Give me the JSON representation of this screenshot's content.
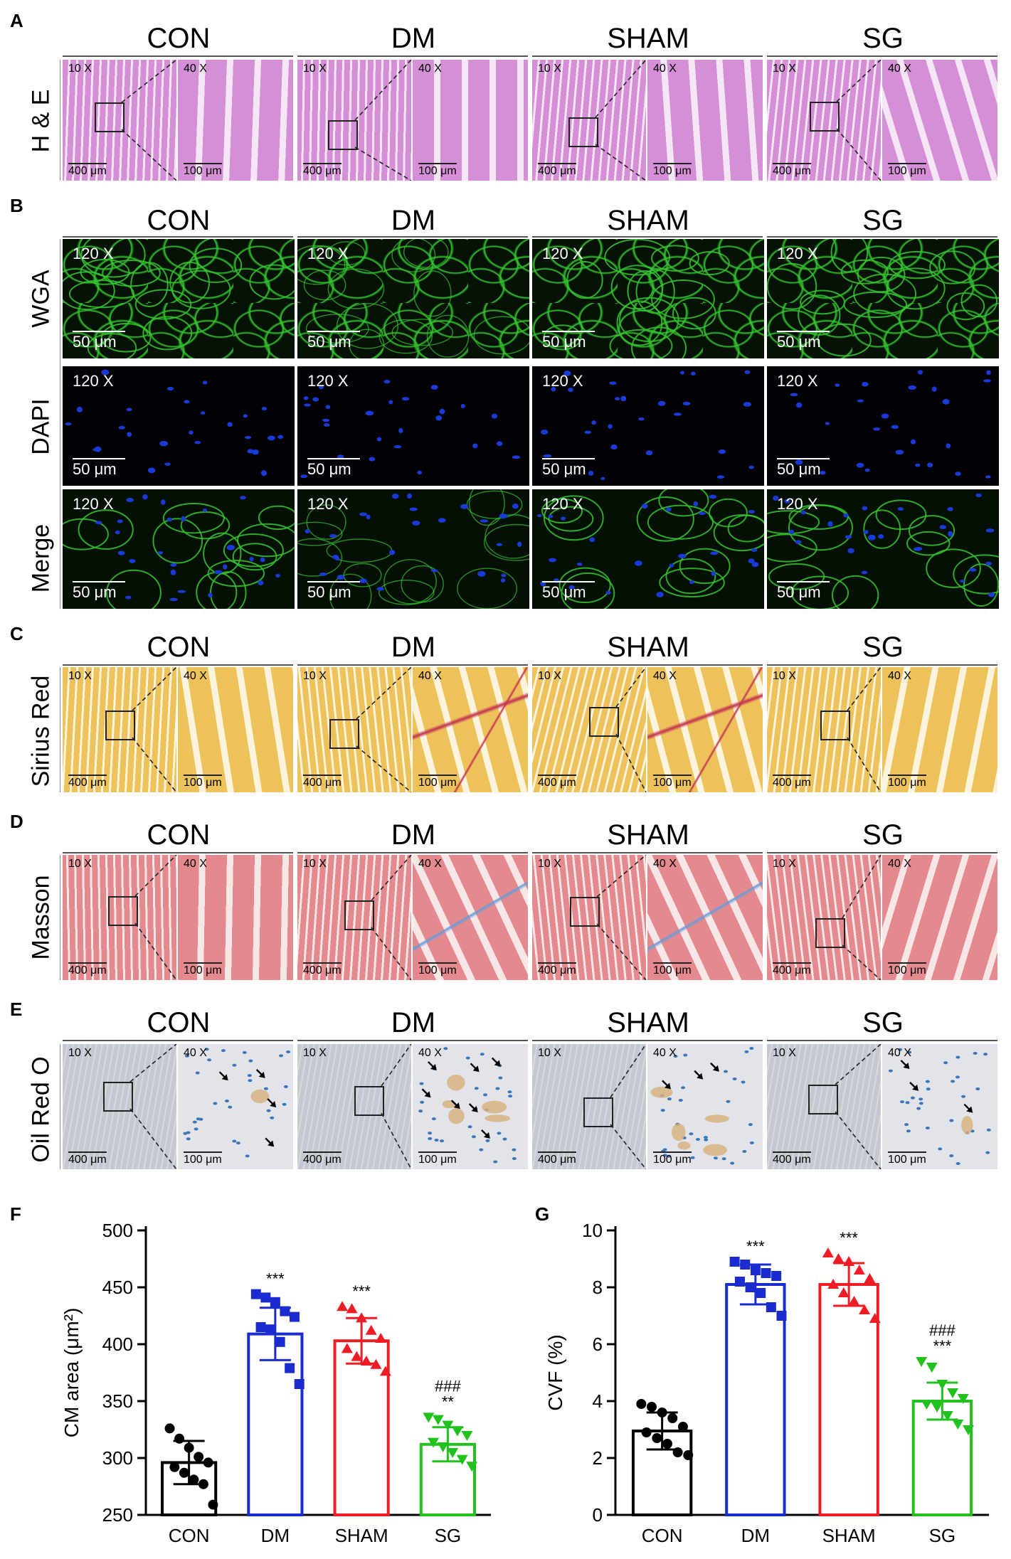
{
  "panel_letters": [
    "A",
    "B",
    "C",
    "D",
    "E",
    "F",
    "G"
  ],
  "groups": [
    "CON",
    "DM",
    "SHAM",
    "SG"
  ],
  "row_labels": {
    "he": "H & E",
    "wga": "WGA",
    "dapi": "DAPI",
    "merge": "Merge",
    "sirius": "Sirius Red",
    "masson": "Masson",
    "oil": "Oil Red O"
  },
  "mag": {
    "low": "10 X",
    "high": "40 X",
    "fluor": "120 X"
  },
  "scale": {
    "low": "400 μm",
    "high": "100 μm",
    "fluor": "50 μm"
  },
  "colors": {
    "he_bg": "#d48fd6",
    "he_gap": "#f4e6f4",
    "sirius_bg": "#edc25a",
    "sirius_gap": "#fbf3dc",
    "collagen": "#c23250",
    "masson_bg": "#e48a8e",
    "masson_gap": "#f7e6e6",
    "masson_blue": "#6a9bd6",
    "oil_bg": "#c9ccd3",
    "oil_nuc": "#3a76b8",
    "lipid": "#d8b07a",
    "wga": "#35c630",
    "dapi": "#1a3ad8",
    "con": "#000000",
    "dm": "#1a2bd0",
    "sham": "#ee1c24",
    "sg": "#22c21e"
  },
  "chart_data": [
    {
      "type": "bar",
      "title": "",
      "xlabel": "",
      "ylabel": "CM area (μm²)",
      "ylim": [
        250,
        500
      ],
      "yticks": [
        250,
        300,
        350,
        400,
        450,
        500
      ],
      "categories": [
        "CON",
        "DM",
        "SHAM",
        "SG"
      ],
      "values": [
        296,
        409,
        403,
        312
      ],
      "errors": [
        19,
        23,
        20,
        15
      ],
      "points": [
        [
          326,
          317,
          309,
          301,
          296,
          292,
          287,
          281,
          277,
          259
        ],
        [
          444,
          441,
          437,
          429,
          424,
          415,
          413,
          402,
          379,
          365
        ],
        [
          433,
          431,
          423,
          412,
          405,
          396,
          389,
          385,
          382,
          376
        ],
        [
          336,
          334,
          329,
          324,
          320,
          314,
          310,
          305,
          299,
          293
        ]
      ],
      "markers": [
        "circle",
        "square",
        "triangle-up",
        "triangle-down"
      ],
      "annotations": [
        [],
        [
          "***"
        ],
        [
          "***"
        ],
        [
          "**",
          "###"
        ]
      ],
      "grid": false
    },
    {
      "type": "bar",
      "title": "",
      "xlabel": "",
      "ylabel": "CVF (%)",
      "ylim": [
        0,
        10
      ],
      "yticks": [
        0,
        2,
        4,
        6,
        8,
        10
      ],
      "categories": [
        "CON",
        "DM",
        "SHAM",
        "SG"
      ],
      "values": [
        2.95,
        8.1,
        8.1,
        4.0
      ],
      "errors": [
        0.65,
        0.7,
        0.75,
        0.65
      ],
      "points": [
        [
          3.9,
          3.8,
          3.6,
          3.4,
          3.1,
          2.9,
          2.7,
          2.5,
          2.2,
          2.1
        ],
        [
          8.9,
          8.8,
          8.6,
          8.5,
          8.4,
          8.2,
          8.0,
          7.8,
          7.3,
          7.0
        ],
        [
          9.2,
          9.0,
          8.9,
          8.6,
          8.3,
          8.1,
          7.8,
          7.5,
          7.2,
          6.9
        ],
        [
          5.4,
          5.2,
          4.6,
          4.3,
          4.1,
          3.9,
          3.8,
          3.5,
          3.2,
          3.0
        ]
      ],
      "markers": [
        "circle",
        "square",
        "triangle-up",
        "triangle-down"
      ],
      "annotations": [
        [],
        [
          "***"
        ],
        [
          "***"
        ],
        [
          "***",
          "###"
        ]
      ],
      "grid": false
    }
  ]
}
